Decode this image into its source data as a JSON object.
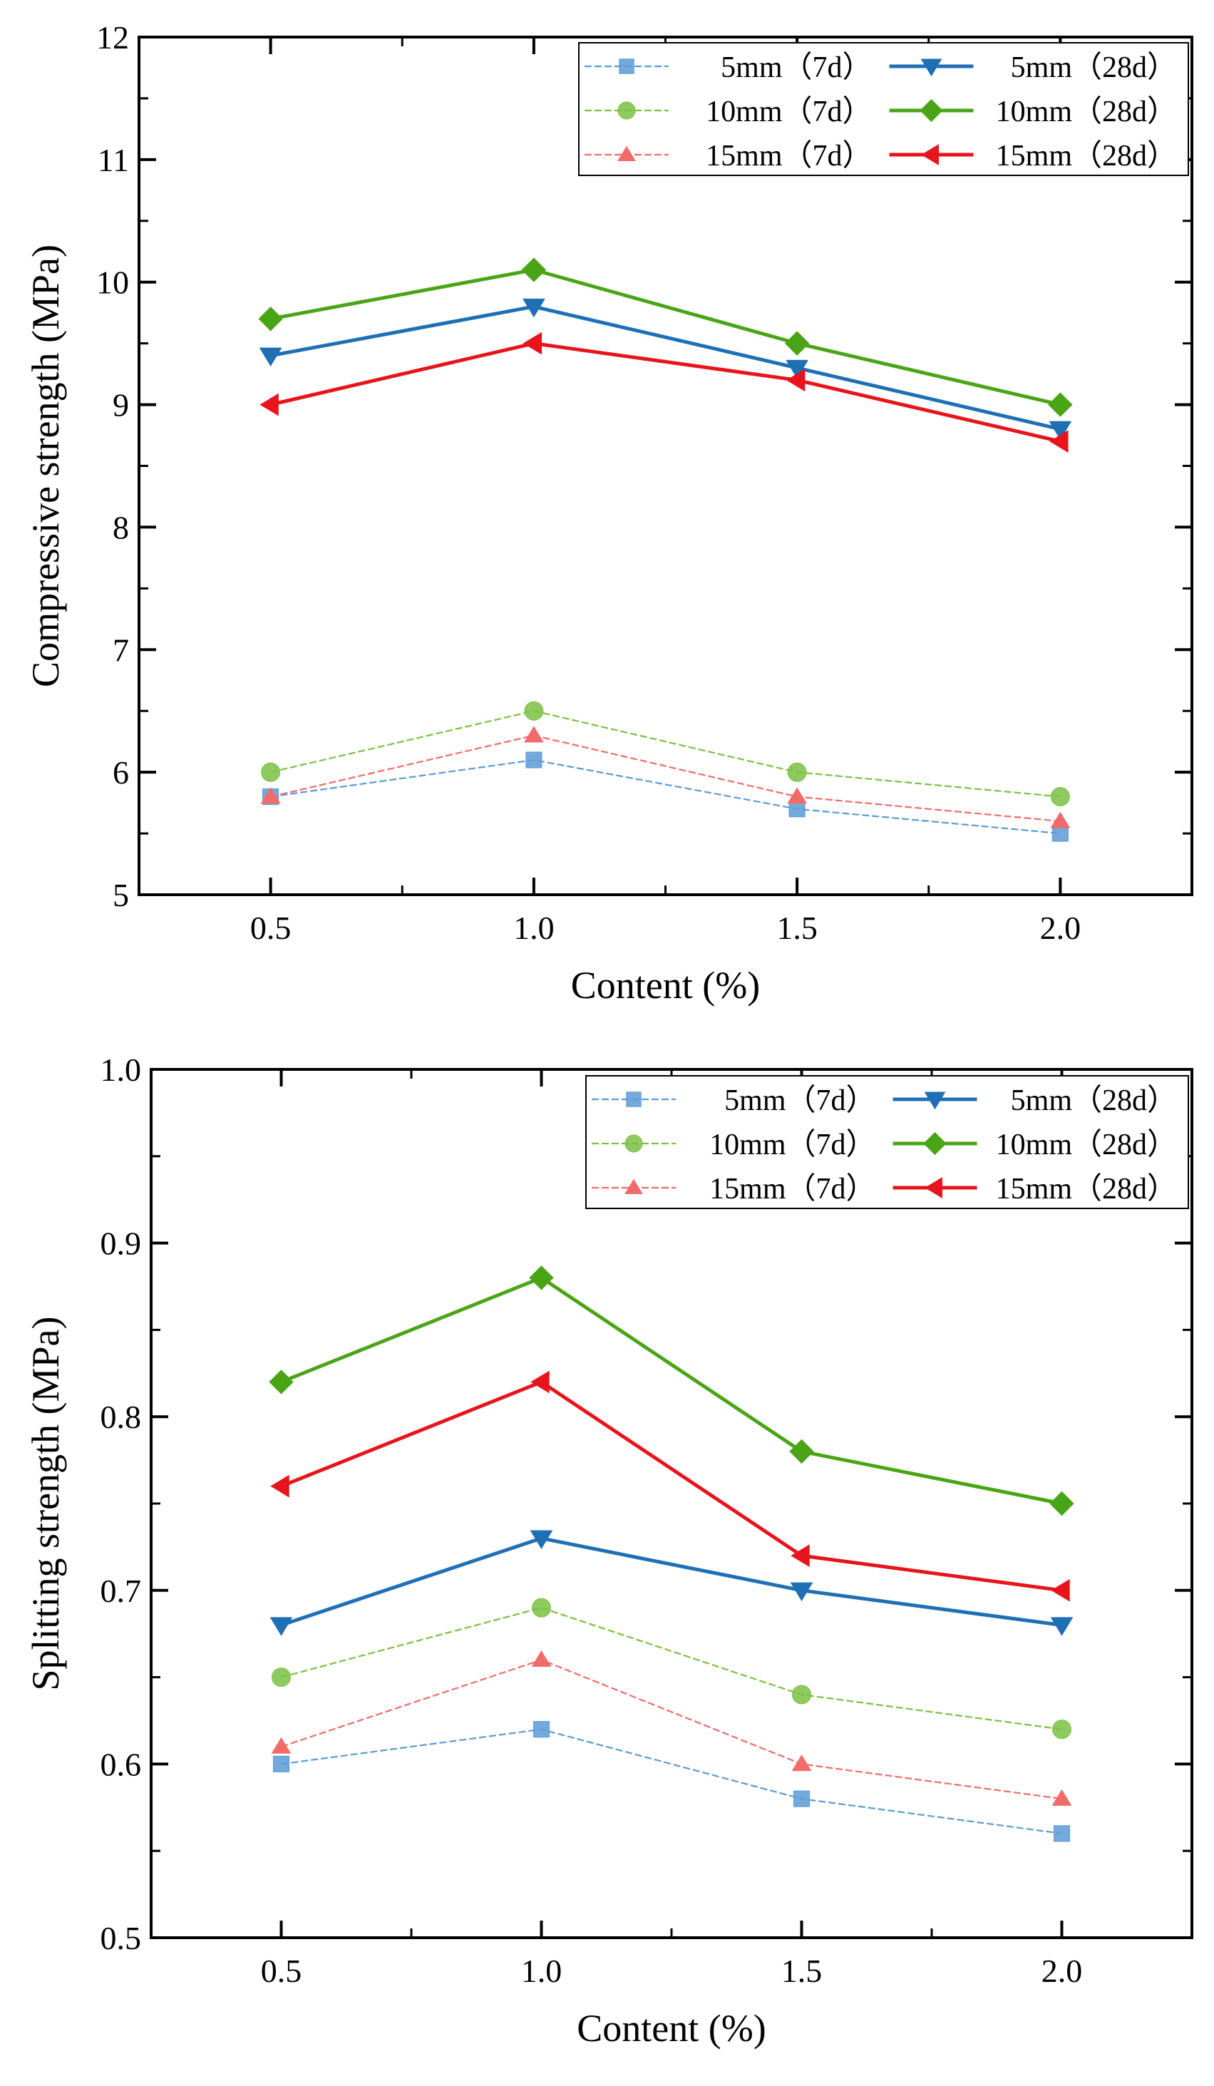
{
  "chart_data": [
    {
      "type": "line",
      "ylabel": "Compressive strength (MPa)",
      "xlabel": "Content (%)",
      "x": [
        0.5,
        1.0,
        1.5,
        2.0
      ],
      "x_tick_labels": [
        "0.5",
        "1.0",
        "1.5",
        "2.0"
      ],
      "xlim": [
        0.25,
        2.25
      ],
      "ylim": [
        5,
        12
      ],
      "y_ticks": [
        5,
        6,
        7,
        8,
        9,
        10,
        11,
        12
      ],
      "y_tick_labels": [
        "5",
        "6",
        "7",
        "8",
        "9",
        "10",
        "11",
        "12"
      ],
      "legend_position": "top-right",
      "series": [
        {
          "name": "5mm（7d）",
          "values": [
            5.8,
            6.1,
            5.7,
            5.5
          ],
          "color": "#5b9bd5",
          "marker": "square",
          "line": "dashed-thin"
        },
        {
          "name": "5mm（28d）",
          "values": [
            9.4,
            9.8,
            9.3,
            8.8
          ],
          "color": "#1f6fb5",
          "marker": "triangle-down",
          "line": "solid"
        },
        {
          "name": "10mm（7d）",
          "values": [
            6.0,
            6.5,
            6.0,
            5.8
          ],
          "color": "#7ac143",
          "marker": "circle",
          "line": "dashed-thin"
        },
        {
          "name": "10mm（28d）",
          "values": [
            9.7,
            10.1,
            9.5,
            9.0
          ],
          "color": "#4aa516",
          "marker": "diamond",
          "line": "solid"
        },
        {
          "name": "15mm（7d）",
          "values": [
            5.8,
            6.3,
            5.8,
            5.6
          ],
          "color": "#f26b6b",
          "marker": "triangle-up",
          "line": "dashed-thin"
        },
        {
          "name": "15mm（28d）",
          "values": [
            9.0,
            9.5,
            9.2,
            8.7
          ],
          "color": "#e8141c",
          "marker": "triangle-left",
          "line": "solid"
        }
      ]
    },
    {
      "type": "line",
      "ylabel": "Splitting strength (MPa)",
      "xlabel": "Content (%)",
      "x": [
        0.5,
        1.0,
        1.5,
        2.0
      ],
      "x_tick_labels": [
        "0.5",
        "1.0",
        "1.5",
        "2.0"
      ],
      "xlim": [
        0.25,
        2.25
      ],
      "ylim": [
        0.5,
        1.0
      ],
      "y_ticks": [
        0.5,
        0.6,
        0.7,
        0.8,
        0.9,
        1.0
      ],
      "y_tick_labels": [
        "0.5",
        "0.6",
        "0.7",
        "0.8",
        "0.9",
        "1.0"
      ],
      "legend_position": "top-right",
      "series": [
        {
          "name": "5mm（7d）",
          "values": [
            0.6,
            0.62,
            0.58,
            0.56
          ],
          "color": "#5b9bd5",
          "marker": "square",
          "line": "dashed-thin"
        },
        {
          "name": "5mm（28d）",
          "values": [
            0.68,
            0.73,
            0.7,
            0.68
          ],
          "color": "#1f6fb5",
          "marker": "triangle-down",
          "line": "solid"
        },
        {
          "name": "10mm（7d）",
          "values": [
            0.65,
            0.69,
            0.64,
            0.62
          ],
          "color": "#7ac143",
          "marker": "circle",
          "line": "dashed-thin"
        },
        {
          "name": "10mm（28d）",
          "values": [
            0.82,
            0.88,
            0.78,
            0.75
          ],
          "color": "#4aa516",
          "marker": "diamond",
          "line": "solid"
        },
        {
          "name": "15mm（7d）",
          "values": [
            0.61,
            0.66,
            0.6,
            0.58
          ],
          "color": "#f26b6b",
          "marker": "triangle-up",
          "line": "dashed-thin"
        },
        {
          "name": "15mm（28d）",
          "values": [
            0.76,
            0.82,
            0.72,
            0.7
          ],
          "color": "#e8141c",
          "marker": "triangle-left",
          "line": "solid"
        }
      ]
    }
  ]
}
